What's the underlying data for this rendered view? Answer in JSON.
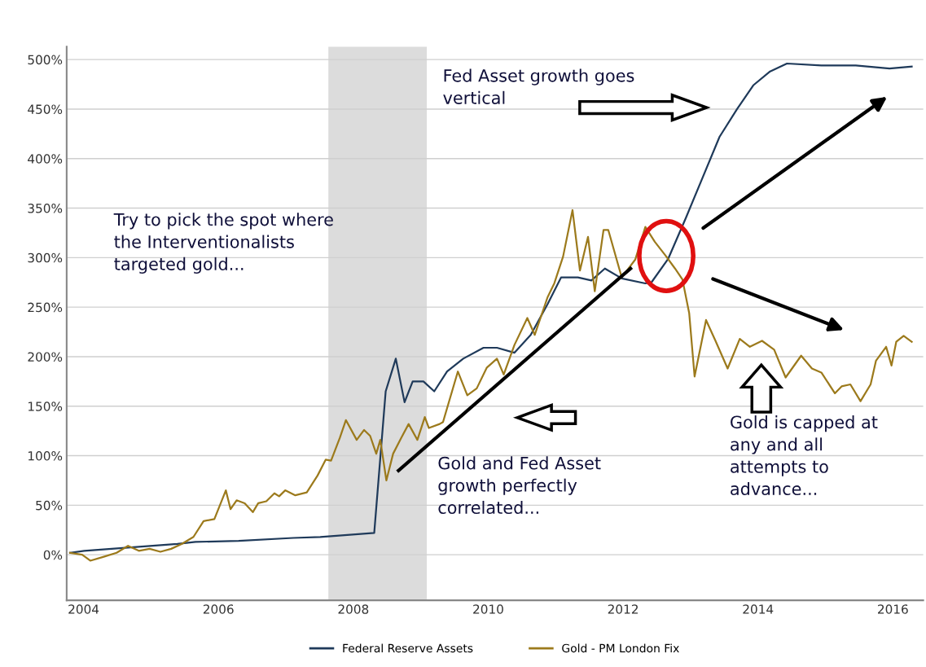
{
  "chart_data": {
    "type": "line",
    "annotations": [
      "Fed Asset growth goes\nvertical",
      "Try to pick the spot where\nthe Interventionalists\ntargeted gold...",
      "Gold and Fed Asset\ngrowth perfectly\ncorrelated...",
      "Gold is capped at\nany and all\nattempts to\nadvance..."
    ],
    "series": [
      {
        "name": "Federal Reserve Assets",
        "color": "#1f3a5a",
        "x": [
          2003.8,
          2004.01,
          2005.39,
          2005.66,
          2006.3,
          2007.11,
          2007.51,
          2008.31,
          2008.48,
          2008.63,
          2008.76,
          2008.88,
          2009.04,
          2009.2,
          2009.39,
          2009.63,
          2009.93,
          2010.13,
          2010.39,
          2010.63,
          2010.88,
          2011.08,
          2011.33,
          2011.53,
          2011.73,
          2011.98,
          2012.33,
          2012.42,
          2012.67,
          2012.93,
          2013.18,
          2013.43,
          2013.69,
          2013.93,
          2014.18,
          2014.43,
          2014.94,
          2015.45,
          2015.95,
          2016.28
        ],
        "values": [
          2,
          4,
          11,
          13,
          14,
          17,
          18,
          22,
          165,
          198,
          154,
          175,
          175,
          165,
          185,
          198,
          209,
          209,
          204,
          222,
          253,
          280,
          280,
          277,
          289,
          279,
          274,
          275,
          299,
          340,
          381,
          422,
          450,
          474,
          488,
          496,
          494,
          494,
          491,
          493
        ]
      },
      {
        "name": "Gold - PM London Fix",
        "color": "#9c7a1c",
        "x": [
          2003.8,
          2003.98,
          2004.1,
          2004.3,
          2004.49,
          2004.66,
          2004.82,
          2004.98,
          2005.14,
          2005.3,
          2005.46,
          2005.63,
          2005.78,
          2005.94,
          2006.11,
          2006.18,
          2006.27,
          2006.39,
          2006.51,
          2006.59,
          2006.71,
          2006.83,
          2006.9,
          2006.99,
          2007.14,
          2007.31,
          2007.47,
          2007.59,
          2007.67,
          2007.8,
          2007.89,
          2008.05,
          2008.16,
          2008.25,
          2008.34,
          2008.4,
          2008.49,
          2008.59,
          2008.71,
          2008.82,
          2008.95,
          2009.06,
          2009.12,
          2009.28,
          2009.33,
          2009.55,
          2009.69,
          2009.83,
          2009.98,
          2010.13,
          2010.23,
          2010.39,
          2010.58,
          2010.69,
          2010.88,
          2010.98,
          2011.11,
          2011.25,
          2011.36,
          2011.48,
          2011.58,
          2011.71,
          2011.78,
          2011.98,
          2012.18,
          2012.33,
          2012.47,
          2012.63,
          2012.77,
          2012.88,
          2012.98,
          2013.06,
          2013.23,
          2013.37,
          2013.55,
          2013.73,
          2013.88,
          2014.06,
          2014.24,
          2014.41,
          2014.64,
          2014.8,
          2014.94,
          2015.14,
          2015.24,
          2015.37,
          2015.52,
          2015.67,
          2015.75,
          2015.9,
          2015.98,
          2016.05,
          2016.16,
          2016.28
        ],
        "values": [
          2,
          0,
          -6,
          -2,
          2,
          9,
          4,
          6,
          3,
          6,
          11,
          18,
          34,
          36,
          65,
          46,
          55,
          52,
          43,
          52,
          54,
          62,
          59,
          65,
          60,
          63,
          80,
          96,
          95,
          118,
          136,
          116,
          126,
          120,
          102,
          116,
          75,
          102,
          118,
          132,
          116,
          139,
          128,
          132,
          134,
          185,
          161,
          168,
          189,
          198,
          182,
          212,
          239,
          222,
          260,
          274,
          301,
          348,
          287,
          321,
          266,
          328,
          328,
          280,
          298,
          331,
          316,
          302,
          289,
          278,
          244,
          180,
          237,
          216,
          188,
          218,
          210,
          216,
          207,
          179,
          201,
          188,
          184,
          163,
          170,
          172,
          155,
          172,
          196,
          210,
          191,
          215,
          221,
          215
        ]
      },
      {
        "color": "#000000",
        "x": [
          2008.67,
          2012.11
        ],
        "values": [
          85,
          289
        ]
      }
    ],
    "xlim": [
      2003.75,
      2016.45
    ],
    "xticks": [
      2004,
      2006,
      2008,
      2010,
      2012,
      2014,
      2016
    ],
    "ylim": [
      -46,
      513
    ],
    "yticks": [
      {
        "value": 0,
        "label": "0%"
      },
      {
        "value": 50,
        "label": "50%"
      },
      {
        "value": 100,
        "label": "100%"
      },
      {
        "value": 150,
        "label": "150%"
      },
      {
        "value": 200,
        "label": "200%"
      },
      {
        "value": 250,
        "label": "250%"
      },
      {
        "value": 300,
        "label": "300%"
      },
      {
        "value": 350,
        "label": "350%"
      },
      {
        "value": 400,
        "label": "400%"
      },
      {
        "value": 450,
        "label": "450%"
      },
      {
        "value": 500,
        "label": "500%"
      }
    ],
    "bands": [
      {
        "axis": "x",
        "from": 2007.63,
        "to": 2009.09,
        "label": null,
        "color": "#dcdcdc"
      }
    ],
    "grid": "y",
    "legend": "bottom",
    "marker": "none",
    "line_style": "solid"
  }
}
